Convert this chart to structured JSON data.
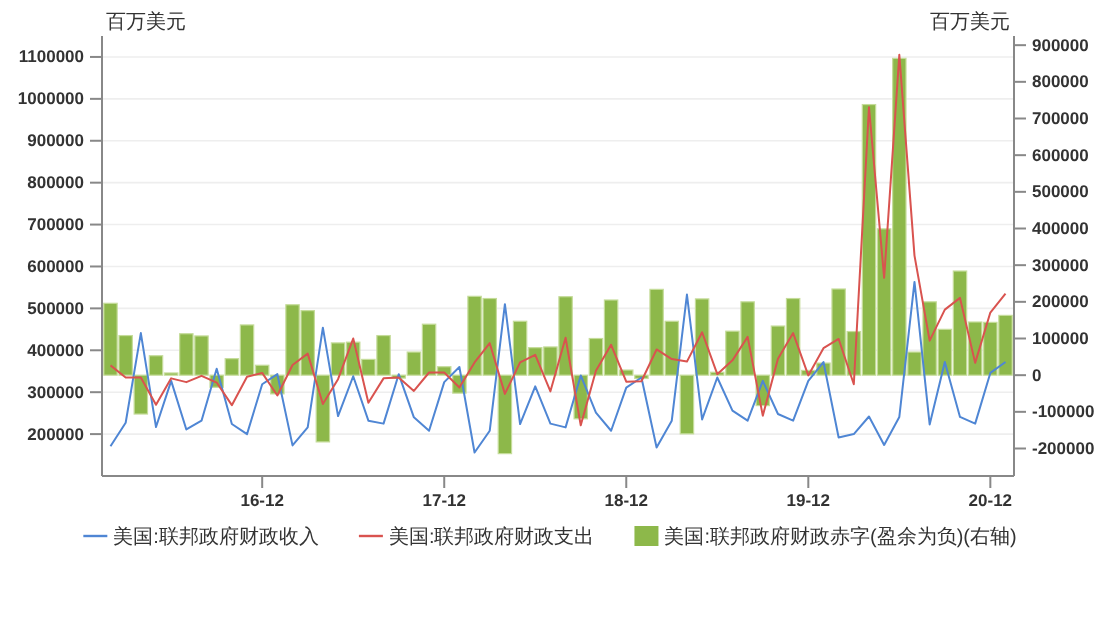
{
  "chart_data": {
    "type": "line",
    "ylabel": "百万美元",
    "y2label": "百万美元",
    "categories": [
      null,
      null,
      null,
      null,
      null,
      null,
      null,
      null,
      null,
      null,
      "16-12",
      null,
      null,
      null,
      null,
      null,
      null,
      null,
      null,
      null,
      null,
      null,
      "17-12",
      null,
      null,
      null,
      null,
      null,
      null,
      null,
      null,
      null,
      null,
      null,
      "18-12",
      null,
      null,
      null,
      null,
      null,
      null,
      null,
      null,
      null,
      null,
      null,
      "19-12",
      null,
      null,
      null,
      null,
      null,
      null,
      null,
      null,
      null,
      null,
      null,
      "20-12",
      null
    ],
    "ylim": [
      100000,
      1150000
    ],
    "yticks": [
      200000,
      300000,
      400000,
      500000,
      600000,
      700000,
      800000,
      900000,
      1000000,
      1100000
    ],
    "y2lim": [
      -275000,
      925000
    ],
    "y2ticks": [
      -200000,
      -100000,
      0,
      100000,
      200000,
      300000,
      400000,
      500000,
      600000,
      700000,
      800000,
      900000
    ],
    "grid": "y",
    "legend": "bottom",
    "series": [
      {
        "name": "美国:联邦政府财政收入",
        "color": "#4f86d4",
        "values": [
          171000,
          227000,
          441000,
          217000,
          327000,
          211000,
          232000,
          356000,
          224000,
          200000,
          319000,
          343000,
          173000,
          216000,
          454000,
          243000,
          338000,
          232000,
          225000,
          343000,
          240000,
          208000,
          324000,
          360000,
          156000,
          208000,
          510000,
          224000,
          314000,
          225000,
          216000,
          340000,
          251000,
          208000,
          311000,
          335000,
          168000,
          232000,
          533000,
          235000,
          335000,
          256000,
          232000,
          327000,
          248000,
          232000,
          327000,
          372000,
          192000,
          200000,
          242000,
          174000,
          241000,
          563000,
          223000,
          372000,
          241000,
          225000,
          346000,
          372000
        ]
      },
      {
        "name": "美国:联邦政府财政支出",
        "color": "#d9534f",
        "values": [
          364000,
          335000,
          335000,
          270000,
          333000,
          324000,
          339000,
          323000,
          269000,
          337000,
          346000,
          292000,
          365000,
          392000,
          272000,
          331000,
          428000,
          275000,
          333000,
          335000,
          303000,
          347000,
          347000,
          311000,
          371000,
          417000,
          296000,
          371000,
          389000,
          302000,
          430000,
          221000,
          351000,
          413000,
          325000,
          326000,
          402000,
          379000,
          373000,
          443000,
          343000,
          376000,
          432000,
          244000,
          380000,
          441000,
          340000,
          405000,
          427000,
          319000,
          980000,
          573000,
          1105000,
          626000,
          423000,
          497000,
          525000,
          370000,
          490000,
          535000
        ]
      },
      {
        "name": "美国:联邦政府财政赤字(盈余为负)(右轴)",
        "type": "bar",
        "axis": "y2",
        "color": "#8db84a",
        "values": [
          196000,
          108000,
          -106000,
          53000,
          6000,
          113000,
          107000,
          -33000,
          45000,
          137000,
          27000,
          -51000,
          192000,
          176000,
          -182000,
          88000,
          90000,
          43000,
          108000,
          -8000,
          63000,
          139000,
          23000,
          -49000,
          215000,
          209000,
          -214000,
          147000,
          75000,
          77000,
          214000,
          -119000,
          100000,
          205000,
          14000,
          -9000,
          234000,
          147000,
          -160000,
          208000,
          8000,
          120000,
          200000,
          -83000,
          134000,
          209000,
          13000,
          33000,
          235000,
          119000,
          738000,
          399000,
          864000,
          63000,
          200000,
          125000,
          284000,
          145000,
          144000,
          163000
        ]
      }
    ]
  }
}
